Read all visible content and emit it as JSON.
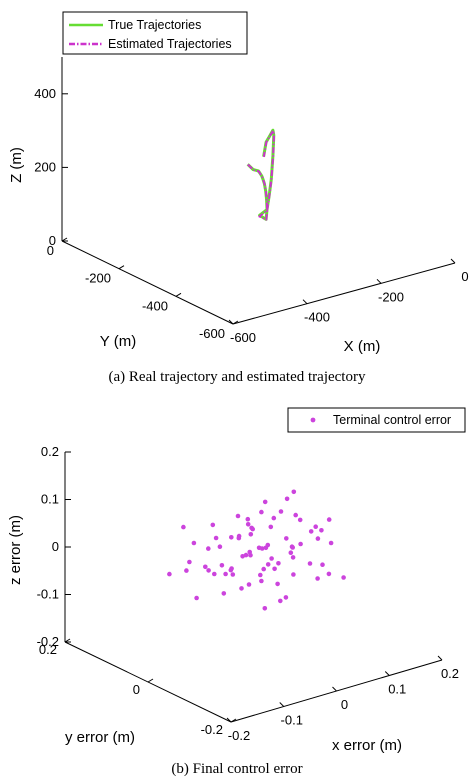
{
  "chart_data": [
    {
      "type": "line",
      "projection": "3d",
      "caption": "(a) Real trajectory and estimated trajectory",
      "xlabel": "X (m)",
      "ylabel": "Y (m)",
      "zlabel": "Z (m)",
      "xlim": [
        -600,
        0
      ],
      "ylim": [
        -600,
        0
      ],
      "zlim": [
        0,
        500
      ],
      "xticks": [
        "-600",
        "-400",
        "-200",
        "0"
      ],
      "yticks": [
        "-600",
        "-400",
        "-200",
        "0"
      ],
      "zticks": [
        "0",
        "200",
        "400"
      ],
      "legend": {
        "placement": "top-left"
      },
      "grid": false,
      "series": [
        {
          "name": "True Trajectories",
          "color": "#66dd33",
          "style": "solid",
          "points": [
            [
              -360,
              -340,
              270
            ],
            [
              -330,
              -320,
              240
            ],
            [
              -300,
              -300,
              220
            ],
            [
              -280,
              -280,
              200
            ],
            [
              -260,
              -260,
              180
            ],
            [
              -245,
              -245,
              160
            ],
            [
              -230,
              -230,
              140
            ],
            [
              -215,
              -215,
              110
            ],
            [
              -205,
              -205,
              80
            ],
            [
              -200,
              -200,
              50
            ],
            [
              -210,
              -210,
              30
            ],
            [
              -220,
              -200,
              40
            ],
            [
              -200,
              -200,
              50
            ],
            [
              -175,
              -175,
              70
            ],
            [
              -150,
              -150,
              100
            ],
            [
              -130,
              -130,
              150
            ],
            [
              -120,
              -120,
              200
            ],
            [
              -130,
              -130,
              220
            ],
            [
              -170,
              -170,
              230
            ],
            [
              -210,
              -210,
              240
            ],
            [
              -240,
              -240,
              220
            ]
          ]
        },
        {
          "name": "Estimated Trajectories",
          "color": "#cc33cc",
          "style": "dash-dot",
          "points": [
            [
              -358,
              -338,
              268
            ],
            [
              -328,
              -318,
              238
            ],
            [
              -298,
              -298,
              218
            ],
            [
              -278,
              -278,
              198
            ],
            [
              -258,
              -258,
              178
            ],
            [
              -243,
              -243,
              158
            ],
            [
              -228,
              -228,
              138
            ],
            [
              -213,
              -213,
              108
            ],
            [
              -203,
              -203,
              78
            ],
            [
              -198,
              -198,
              48
            ],
            [
              -208,
              -208,
              28
            ],
            [
              -222,
              -202,
              38
            ],
            [
              -198,
              -198,
              48
            ],
            [
              -173,
              -173,
              68
            ],
            [
              -148,
              -148,
              98
            ],
            [
              -128,
              -128,
              148
            ],
            [
              -118,
              -118,
              198
            ],
            [
              -128,
              -128,
              218
            ],
            [
              -168,
              -168,
              228
            ],
            [
              -208,
              -208,
              238
            ],
            [
              -238,
              -238,
              218
            ]
          ]
        }
      ]
    },
    {
      "type": "scatter",
      "projection": "3d",
      "caption": "(b) Final control error",
      "xlabel": "x error (m)",
      "ylabel": "y error (m)",
      "zlabel": "z error (m)",
      "xlim": [
        -0.2,
        0.2
      ],
      "ylim": [
        -0.2,
        0.2
      ],
      "zlim": [
        -0.2,
        0.2
      ],
      "xticks": [
        "-0.2",
        "-0.1",
        "0",
        "0.1",
        "0.2"
      ],
      "yticks": [
        "-0.2",
        "0",
        "0.2"
      ],
      "zticks": [
        "-0.2",
        "-0.1",
        "0",
        "0.1",
        "0.2"
      ],
      "legend": {
        "placement": "top-right"
      },
      "grid": false,
      "series": [
        {
          "name": "Terminal control error",
          "color": "#cc44dd",
          "points": [
            [
              0.05,
              -0.05,
              0.03
            ],
            [
              0.02,
              0.03,
              0.04
            ],
            [
              -0.03,
              -0.02,
              0.02
            ],
            [
              0.08,
              0.0,
              0.06
            ],
            [
              -0.06,
              0.04,
              -0.02
            ],
            [
              0.01,
              -0.08,
              0.05
            ],
            [
              0.04,
              0.06,
              -0.03
            ],
            [
              -0.02,
              -0.05,
              0.0
            ],
            [
              0.06,
              -0.02,
              -0.05
            ],
            [
              -0.05,
              0.08,
              0.01
            ],
            [
              0.03,
              0.01,
              0.1
            ],
            [
              0.1,
              -0.06,
              0.02
            ],
            [
              -0.08,
              -0.03,
              -0.04
            ],
            [
              0.0,
              0.05,
              -0.06
            ],
            [
              0.07,
              0.04,
              0.04
            ],
            [
              -0.04,
              -0.07,
              -0.01
            ],
            [
              0.02,
              -0.01,
              -0.02
            ],
            [
              0.05,
              0.07,
              0.0
            ],
            [
              -0.01,
              0.0,
              0.07
            ],
            [
              0.09,
              0.02,
              -0.02
            ],
            [
              -0.07,
              0.02,
              0.03
            ],
            [
              0.03,
              -0.04,
              -0.08
            ],
            [
              0.12,
              -0.03,
              0.05
            ],
            [
              -0.1,
              0.01,
              -0.06
            ],
            [
              0.06,
              0.09,
              0.02
            ],
            [
              0.0,
              -0.06,
              0.01
            ],
            [
              0.04,
              0.0,
              -0.04
            ],
            [
              -0.03,
              0.06,
              0.05
            ],
            [
              0.08,
              -0.08,
              -0.03
            ],
            [
              -0.06,
              -0.05,
              0.04
            ],
            [
              0.01,
              0.02,
              -0.01
            ],
            [
              0.11,
              0.05,
              -0.05
            ],
            [
              -0.09,
              -0.02,
              0.0
            ],
            [
              0.05,
              -0.1,
              0.08
            ],
            [
              0.02,
              0.08,
              -0.07
            ],
            [
              -0.04,
              0.03,
              0.02
            ],
            [
              0.07,
              0.01,
              0.01
            ],
            [
              -0.02,
              -0.09,
              -0.05
            ],
            [
              0.1,
              0.03,
              0.09
            ],
            [
              -0.12,
              0.05,
              -0.02
            ],
            [
              0.03,
              0.04,
              0.03
            ],
            [
              0.06,
              -0.06,
              -0.01
            ],
            [
              -0.05,
              -0.01,
              0.06
            ],
            [
              0.0,
              0.09,
              0.0
            ],
            [
              0.09,
              -0.04,
              -0.06
            ],
            [
              -0.08,
              0.06,
              -0.03
            ],
            [
              0.04,
              -0.03,
              0.12
            ],
            [
              0.13,
              0.01,
              -0.01
            ],
            [
              -0.01,
              -0.04,
              -0.09
            ],
            [
              0.07,
              0.07,
              0.04
            ],
            [
              -0.06,
              0.0,
              0.0
            ],
            [
              0.02,
              -0.07,
              0.02
            ],
            [
              0.05,
              0.02,
              -0.03
            ],
            [
              -0.03,
              0.07,
              -0.05
            ],
            [
              0.08,
              0.06,
              0.01
            ],
            [
              -0.1,
              -0.06,
              0.02
            ],
            [
              0.01,
              0.05,
              0.06
            ],
            [
              0.06,
              -0.09,
              0.0
            ],
            [
              -0.07,
              0.08,
              0.05
            ],
            [
              0.11,
              -0.01,
              0.03
            ],
            [
              0.03,
              -0.02,
              -0.06
            ],
            [
              -0.02,
              0.01,
              0.04
            ],
            [
              0.09,
              0.08,
              -0.04
            ],
            [
              -0.05,
              -0.08,
              0.01
            ],
            [
              0.04,
              0.03,
              -0.01
            ],
            [
              0.0,
              -0.03,
              0.03
            ],
            [
              0.07,
              -0.05,
              0.05
            ],
            [
              -0.09,
              0.04,
              0.0
            ],
            [
              0.12,
              0.04,
              0.02
            ],
            [
              -0.04,
              -0.04,
              -0.03
            ],
            [
              0.02,
              0.06,
              0.01
            ],
            [
              0.06,
              0.01,
              0.07
            ],
            [
              -0.07,
              -0.06,
              -0.02
            ],
            [
              0.1,
              -0.09,
              -0.04
            ],
            [
              0.05,
              0.05,
              -0.02
            ],
            [
              -0.01,
              0.04,
              -0.04
            ]
          ]
        }
      ]
    }
  ]
}
